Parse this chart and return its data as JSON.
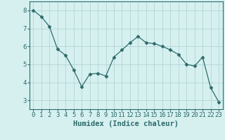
{
  "x": [
    0,
    1,
    2,
    3,
    4,
    5,
    6,
    7,
    8,
    9,
    10,
    11,
    12,
    13,
    14,
    15,
    16,
    17,
    18,
    19,
    20,
    21,
    22,
    23
  ],
  "y": [
    8.0,
    7.65,
    7.1,
    5.85,
    5.5,
    4.7,
    3.75,
    4.45,
    4.5,
    4.35,
    5.4,
    5.8,
    6.2,
    6.55,
    6.2,
    6.15,
    6.0,
    5.8,
    5.55,
    5.0,
    4.9,
    5.4,
    3.7,
    2.9
  ],
  "line_color": "#2e6b6b",
  "marker": "D",
  "markersize": 2.5,
  "bg_color": "#d6f0f0",
  "grid_color": "#b8d8d8",
  "xlabel": "Humidex (Indice chaleur)",
  "xlabel_fontsize": 7.5,
  "tick_fontsize": 6.5,
  "ylim": [
    2.5,
    8.5
  ],
  "yticks": [
    3,
    4,
    5,
    6,
    7,
    8
  ],
  "xlim": [
    -0.5,
    23.5
  ]
}
